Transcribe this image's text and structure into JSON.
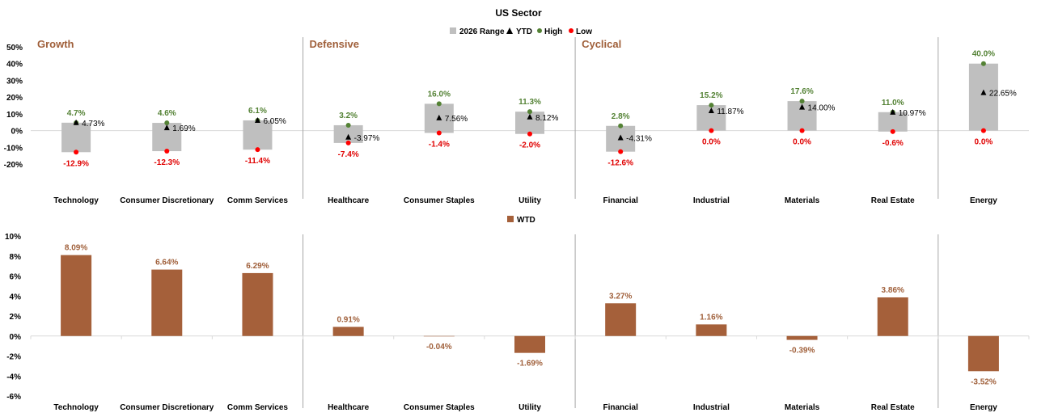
{
  "chart_data": [
    {
      "type": "range",
      "title": "US Sector",
      "groups": [
        "Growth",
        "Defensive",
        "Cyclical"
      ],
      "categories": [
        "Technology",
        "Consumer Discretionary",
        "Comm Services",
        "Healthcare",
        "Consumer Staples",
        "Utility",
        "Financial",
        "Industrial",
        "Materials",
        "Real Estate",
        "Energy"
      ],
      "legend": [
        "2026 Range",
        "YTD",
        "High",
        "Low"
      ],
      "legend_position": "top",
      "ylim": [
        -20,
        50
      ],
      "yticks": [
        -20,
        -10,
        0,
        10,
        20,
        30,
        40,
        50
      ],
      "ytick_labels": [
        "-20%",
        "-10%",
        "0%",
        "10%",
        "20%",
        "30%",
        "40%",
        "50%"
      ],
      "high": [
        4.7,
        4.6,
        6.1,
        3.2,
        16.0,
        11.3,
        2.8,
        15.2,
        17.6,
        11.0,
        40.0
      ],
      "low": [
        -12.9,
        -12.3,
        -11.4,
        -7.4,
        -1.4,
        -2.0,
        -12.6,
        0.0,
        0.0,
        -0.6,
        0.0
      ],
      "ytd": [
        4.73,
        1.69,
        6.05,
        -3.97,
        7.56,
        8.12,
        -4.31,
        11.87,
        14.0,
        10.97,
        22.65
      ],
      "high_labels": [
        "4.7%",
        "4.6%",
        "6.1%",
        "3.2%",
        "16.0%",
        "11.3%",
        "2.8%",
        "15.2%",
        "17.6%",
        "11.0%",
        "40.0%"
      ],
      "low_labels": [
        "-12.9%",
        "-12.3%",
        "-11.4%",
        "-7.4%",
        "-1.4%",
        "-2.0%",
        "-12.6%",
        "0.0%",
        "0.0%",
        "-0.6%",
        "0.0%"
      ],
      "ytd_labels": [
        "4.73%",
        "1.69%",
        "6.05%",
        "-3.97%",
        "7.56%",
        "8.12%",
        "-4.31%",
        "11.87%",
        "14.00%",
        "10.97%",
        "22.65%"
      ],
      "grid": false
    },
    {
      "type": "bar",
      "categories": [
        "Technology",
        "Consumer Discretionary",
        "Comm Services",
        "Healthcare",
        "Consumer Staples",
        "Utility",
        "Financial",
        "Industrial",
        "Materials",
        "Real Estate",
        "Energy"
      ],
      "series": [
        {
          "name": "WTD",
          "values": [
            8.09,
            6.64,
            6.29,
            0.91,
            -0.04,
            -1.69,
            3.27,
            1.16,
            -0.39,
            3.86,
            -3.52
          ]
        }
      ],
      "value_labels": [
        "8.09%",
        "6.64%",
        "6.29%",
        "0.91%",
        "-0.04%",
        "-1.69%",
        "3.27%",
        "1.16%",
        "-0.39%",
        "3.86%",
        "-3.52%"
      ],
      "legend_position": "top",
      "ylim": [
        -6,
        10
      ],
      "yticks": [
        -6,
        -4,
        -2,
        0,
        2,
        4,
        6,
        8,
        10
      ],
      "ytick_labels": [
        "-6%",
        "-4%",
        "-2%",
        "0%",
        "2%",
        "4%",
        "6%",
        "8%",
        "10%"
      ],
      "grid": false
    }
  ],
  "colors": {
    "range": "#bfbfbf",
    "ytd": "#000000",
    "high": "#548235",
    "low": "#ff0000",
    "bar": "#a5603a",
    "bar_label": "#a0603b",
    "group_label": "#a0603b",
    "low_label": "#e00000",
    "high_label": "#548235",
    "axis": "#d9d9d9",
    "divider": "#a6a6a6"
  }
}
